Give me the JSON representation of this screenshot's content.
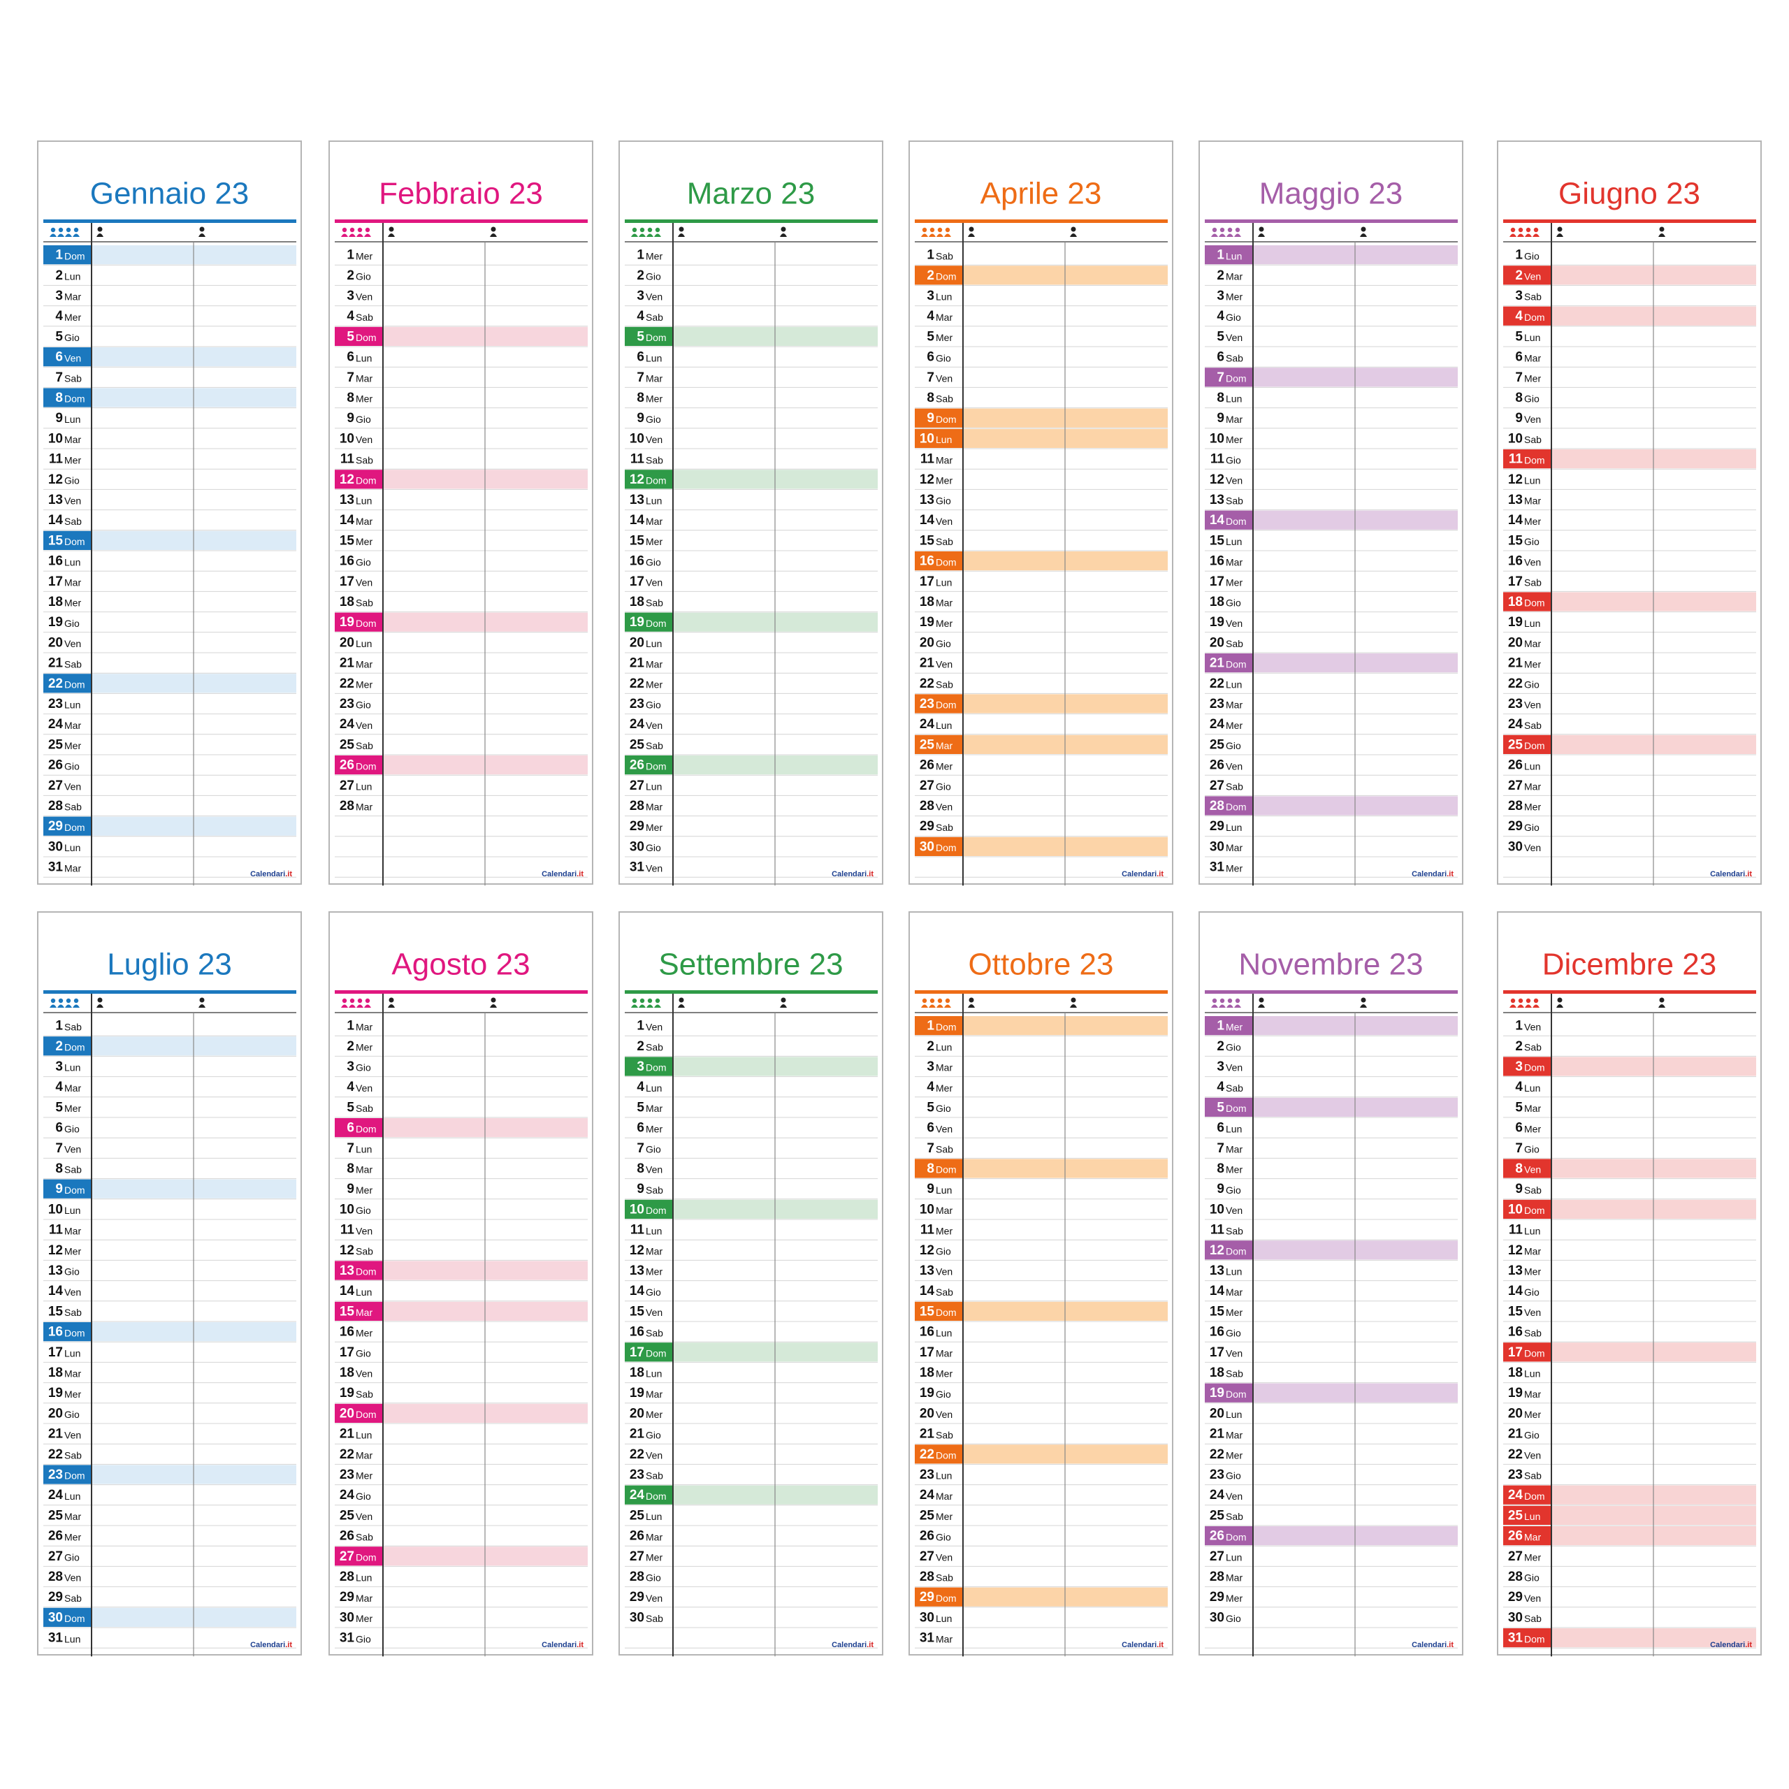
{
  "brand": "Calendari",
  "brand_suffix": ".it",
  "months": [
    {
      "title": "Gennaio 23",
      "color": "#1b78be",
      "light": "#dcebf7",
      "holidays": [
        1,
        6,
        8,
        15,
        22,
        29
      ],
      "days": [
        1,
        2,
        3,
        4,
        5,
        6,
        7,
        8,
        9,
        10,
        11,
        12,
        13,
        14,
        15,
        16,
        17,
        18,
        19,
        20,
        21,
        22,
        23,
        24,
        25,
        26,
        27,
        28,
        29,
        30,
        31
      ],
      "weekdays": [
        "Dom",
        "Lun",
        "Mar",
        "Mer",
        "Gio",
        "Ven",
        "Sab",
        "Dom",
        "Lun",
        "Mar",
        "Mer",
        "Gio",
        "Ven",
        "Sab",
        "Dom",
        "Lun",
        "Mar",
        "Mer",
        "Gio",
        "Ven",
        "Sab",
        "Dom",
        "Lun",
        "Mar",
        "Mer",
        "Gio",
        "Ven",
        "Sab",
        "Dom",
        "Lun",
        "Mar"
      ]
    },
    {
      "title": "Febbraio 23",
      "color": "#e0177f",
      "light": "#f7d6dd",
      "holidays": [
        5,
        12,
        19,
        26
      ],
      "days": [
        1,
        2,
        3,
        4,
        5,
        6,
        7,
        8,
        9,
        10,
        11,
        12,
        13,
        14,
        15,
        16,
        17,
        18,
        19,
        20,
        21,
        22,
        23,
        24,
        25,
        26,
        27,
        28
      ],
      "weekdays": [
        "Mer",
        "Gio",
        "Ven",
        "Sab",
        "Dom",
        "Lun",
        "Mar",
        "Mer",
        "Gio",
        "Ven",
        "Sab",
        "Dom",
        "Lun",
        "Mar",
        "Mer",
        "Gio",
        "Ven",
        "Sab",
        "Dom",
        "Lun",
        "Mar",
        "Mer",
        "Gio",
        "Ven",
        "Sab",
        "Dom",
        "Lun",
        "Mar"
      ]
    },
    {
      "title": "Marzo 23",
      "color": "#2e9a47",
      "light": "#d5e9d8",
      "holidays": [
        5,
        12,
        19,
        26
      ],
      "days": [
        1,
        2,
        3,
        4,
        5,
        6,
        7,
        8,
        9,
        10,
        11,
        12,
        13,
        14,
        15,
        16,
        17,
        18,
        19,
        20,
        21,
        22,
        23,
        24,
        25,
        26,
        27,
        28,
        29,
        30,
        31
      ],
      "weekdays": [
        "Mer",
        "Gio",
        "Ven",
        "Sab",
        "Dom",
        "Lun",
        "Mar",
        "Mer",
        "Gio",
        "Ven",
        "Sab",
        "Dom",
        "Lun",
        "Mar",
        "Mer",
        "Gio",
        "Ven",
        "Sab",
        "Dom",
        "Lun",
        "Mar",
        "Mer",
        "Gio",
        "Ven",
        "Sab",
        "Dom",
        "Lun",
        "Mar",
        "Mer",
        "Gio",
        "Ven"
      ]
    },
    {
      "title": "Aprile 23",
      "color": "#ee6c16",
      "light": "#fcd4a8",
      "holidays": [
        2,
        9,
        10,
        16,
        23,
        25,
        30
      ],
      "days": [
        1,
        2,
        3,
        4,
        5,
        6,
        7,
        8,
        9,
        10,
        11,
        12,
        13,
        14,
        15,
        16,
        17,
        18,
        19,
        20,
        21,
        22,
        23,
        24,
        25,
        26,
        27,
        28,
        29,
        30
      ],
      "weekdays": [
        "Sab",
        "Dom",
        "Lun",
        "Mar",
        "Mer",
        "Gio",
        "Ven",
        "Sab",
        "Dom",
        "Lun",
        "Mar",
        "Mer",
        "Gio",
        "Ven",
        "Sab",
        "Dom",
        "Lun",
        "Mar",
        "Mer",
        "Gio",
        "Ven",
        "Sab",
        "Dom",
        "Lun",
        "Mar",
        "Mer",
        "Gio",
        "Ven",
        "Sab",
        "Dom"
      ]
    },
    {
      "title": "Maggio 23",
      "color": "#a55ea8",
      "light": "#e2cbe4",
      "holidays": [
        1,
        7,
        14,
        21,
        28
      ],
      "days": [
        1,
        2,
        3,
        4,
        5,
        6,
        7,
        8,
        9,
        10,
        11,
        12,
        13,
        14,
        15,
        16,
        17,
        18,
        19,
        20,
        21,
        22,
        23,
        24,
        25,
        26,
        27,
        28,
        29,
        30,
        31
      ],
      "weekdays": [
        "Lun",
        "Mar",
        "Mer",
        "Gio",
        "Ven",
        "Sab",
        "Dom",
        "Lun",
        "Mar",
        "Mer",
        "Gio",
        "Ven",
        "Sab",
        "Dom",
        "Lun",
        "Mar",
        "Mer",
        "Gio",
        "Ven",
        "Sab",
        "Dom",
        "Lun",
        "Mar",
        "Mer",
        "Gio",
        "Ven",
        "Sab",
        "Dom",
        "Lun",
        "Mar",
        "Mer"
      ]
    },
    {
      "title": "Giugno 23",
      "color": "#e2352d",
      "light": "#f8d4d4",
      "holidays": [
        2,
        4,
        11,
        18,
        25
      ],
      "days": [
        1,
        2,
        3,
        4,
        5,
        6,
        7,
        8,
        9,
        10,
        11,
        12,
        13,
        14,
        15,
        16,
        17,
        18,
        19,
        20,
        21,
        22,
        23,
        24,
        25,
        26,
        27,
        28,
        29,
        30
      ],
      "weekdays": [
        "Gio",
        "Ven",
        "Sab",
        "Dom",
        "Lun",
        "Mar",
        "Mer",
        "Gio",
        "Ven",
        "Sab",
        "Dom",
        "Lun",
        "Mar",
        "Mer",
        "Gio",
        "Ven",
        "Sab",
        "Dom",
        "Lun",
        "Mar",
        "Mer",
        "Gio",
        "Ven",
        "Sab",
        "Dom",
        "Lun",
        "Mar",
        "Mer",
        "Gio",
        "Ven"
      ]
    },
    {
      "title": "Luglio 23",
      "color": "#1b78be",
      "light": "#dcebf7",
      "holidays": [
        2,
        9,
        16,
        23,
        30
      ],
      "days": [
        1,
        2,
        3,
        4,
        5,
        6,
        7,
        8,
        9,
        10,
        11,
        12,
        13,
        14,
        15,
        16,
        17,
        18,
        19,
        20,
        21,
        22,
        23,
        24,
        25,
        26,
        27,
        28,
        29,
        30,
        31
      ],
      "weekdays": [
        "Sab",
        "Dom",
        "Lun",
        "Mar",
        "Mer",
        "Gio",
        "Ven",
        "Sab",
        "Dom",
        "Lun",
        "Mar",
        "Mer",
        "Gio",
        "Ven",
        "Sab",
        "Dom",
        "Lun",
        "Mar",
        "Mer",
        "Gio",
        "Ven",
        "Sab",
        "Dom",
        "Lun",
        "Mar",
        "Mer",
        "Gio",
        "Ven",
        "Sab",
        "Dom",
        "Lun"
      ]
    },
    {
      "title": "Agosto 23",
      "color": "#e0177f",
      "light": "#f7d6dd",
      "holidays": [
        6,
        13,
        15,
        20,
        27
      ],
      "days": [
        1,
        2,
        3,
        4,
        5,
        6,
        7,
        8,
        9,
        10,
        11,
        12,
        13,
        14,
        15,
        16,
        17,
        18,
        19,
        20,
        21,
        22,
        23,
        24,
        25,
        26,
        27,
        28,
        29,
        30,
        31
      ],
      "weekdays": [
        "Mar",
        "Mer",
        "Gio",
        "Ven",
        "Sab",
        "Dom",
        "Lun",
        "Mar",
        "Mer",
        "Gio",
        "Ven",
        "Sab",
        "Dom",
        "Lun",
        "Mar",
        "Mer",
        "Gio",
        "Ven",
        "Sab",
        "Dom",
        "Lun",
        "Mar",
        "Mer",
        "Gio",
        "Ven",
        "Sab",
        "Dom",
        "Lun",
        "Mar",
        "Mer",
        "Gio"
      ]
    },
    {
      "title": "Settembre 23",
      "color": "#2e9a47",
      "light": "#d5e9d8",
      "holidays": [
        3,
        10,
        17,
        24
      ],
      "days": [
        1,
        2,
        3,
        4,
        5,
        6,
        7,
        8,
        9,
        10,
        11,
        12,
        13,
        14,
        15,
        16,
        17,
        18,
        19,
        20,
        21,
        22,
        23,
        24,
        25,
        26,
        27,
        28,
        29,
        30
      ],
      "weekdays": [
        "Ven",
        "Sab",
        "Dom",
        "Lun",
        "Mar",
        "Mer",
        "Gio",
        "Ven",
        "Sab",
        "Dom",
        "Lun",
        "Mar",
        "Mer",
        "Gio",
        "Ven",
        "Sab",
        "Dom",
        "Lun",
        "Mar",
        "Mer",
        "Gio",
        "Ven",
        "Sab",
        "Dom",
        "Lun",
        "Mar",
        "Mer",
        "Gio",
        "Ven",
        "Sab"
      ]
    },
    {
      "title": "Ottobre 23",
      "color": "#ee6c16",
      "light": "#fcd4a8",
      "holidays": [
        1,
        8,
        15,
        22,
        29
      ],
      "days": [
        1,
        2,
        3,
        4,
        5,
        6,
        7,
        8,
        9,
        10,
        11,
        12,
        13,
        14,
        15,
        16,
        17,
        18,
        19,
        20,
        21,
        22,
        23,
        24,
        25,
        26,
        27,
        28,
        29,
        30,
        31
      ],
      "weekdays": [
        "Dom",
        "Lun",
        "Mar",
        "Mer",
        "Gio",
        "Ven",
        "Sab",
        "Dom",
        "Lun",
        "Mar",
        "Mer",
        "Gio",
        "Ven",
        "Sab",
        "Dom",
        "Lun",
        "Mar",
        "Mer",
        "Gio",
        "Ven",
        "Sab",
        "Dom",
        "Lun",
        "Mar",
        "Mer",
        "Gio",
        "Ven",
        "Sab",
        "Dom",
        "Lun",
        "Mar"
      ]
    },
    {
      "title": "Novembre 23",
      "color": "#a55ea8",
      "light": "#e2cbe4",
      "holidays": [
        1,
        5,
        12,
        19,
        26
      ],
      "days": [
        1,
        2,
        3,
        4,
        5,
        6,
        7,
        8,
        9,
        10,
        11,
        12,
        13,
        14,
        15,
        16,
        17,
        18,
        19,
        20,
        21,
        22,
        23,
        24,
        25,
        26,
        27,
        28,
        29,
        30
      ],
      "weekdays": [
        "Mer",
        "Gio",
        "Ven",
        "Sab",
        "Dom",
        "Lun",
        "Mar",
        "Mer",
        "Gio",
        "Ven",
        "Sab",
        "Dom",
        "Lun",
        "Mar",
        "Mer",
        "Gio",
        "Ven",
        "Sab",
        "Dom",
        "Lun",
        "Mar",
        "Mer",
        "Gio",
        "Ven",
        "Sab",
        "Dom",
        "Lun",
        "Mar",
        "Mer",
        "Gio"
      ]
    },
    {
      "title": "Dicembre 23",
      "color": "#e2352d",
      "light": "#f8d4d4",
      "holidays": [
        3,
        8,
        10,
        17,
        24,
        25,
        26,
        31
      ],
      "days": [
        1,
        2,
        3,
        4,
        5,
        6,
        7,
        8,
        9,
        10,
        11,
        12,
        13,
        14,
        15,
        16,
        17,
        18,
        19,
        20,
        21,
        22,
        23,
        24,
        25,
        26,
        27,
        28,
        29,
        30,
        31
      ],
      "weekdays": [
        "Ven",
        "Sab",
        "Dom",
        "Lun",
        "Mar",
        "Mer",
        "Gio",
        "Ven",
        "Sab",
        "Dom",
        "Lun",
        "Mar",
        "Mer",
        "Gio",
        "Ven",
        "Sab",
        "Dom",
        "Lun",
        "Mar",
        "Mer",
        "Gio",
        "Ven",
        "Sab",
        "Dom",
        "Lun",
        "Mar",
        "Mer",
        "Gio",
        "Ven",
        "Sab",
        "Dom"
      ]
    }
  ]
}
